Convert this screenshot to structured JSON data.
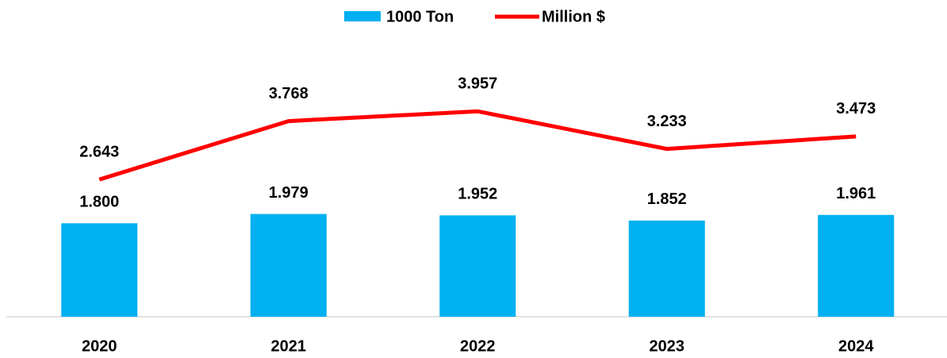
{
  "chart_data": {
    "type": "combo",
    "categories": [
      "2020",
      "2021",
      "2022",
      "2023",
      "2024"
    ],
    "series": [
      {
        "name": "1000 Ton",
        "type": "bar",
        "color": "#00b0f0",
        "values": [
          1.8,
          1.979,
          1.952,
          1.852,
          1.961
        ],
        "value_labels": [
          "1.800",
          "1.979",
          "1.952",
          "1.852",
          "1.961"
        ]
      },
      {
        "name": "Million $",
        "type": "line",
        "axis": "y2",
        "color": "#ff0000",
        "values": [
          2.643,
          3.768,
          3.957,
          3.233,
          3.473
        ],
        "value_labels": [
          "2.643",
          "3.768",
          "3.957",
          "3.233",
          "3.473"
        ]
      }
    ],
    "ylim": [
      0,
      5
    ],
    "y2lim": [
      0,
      5
    ],
    "legend": "top"
  }
}
